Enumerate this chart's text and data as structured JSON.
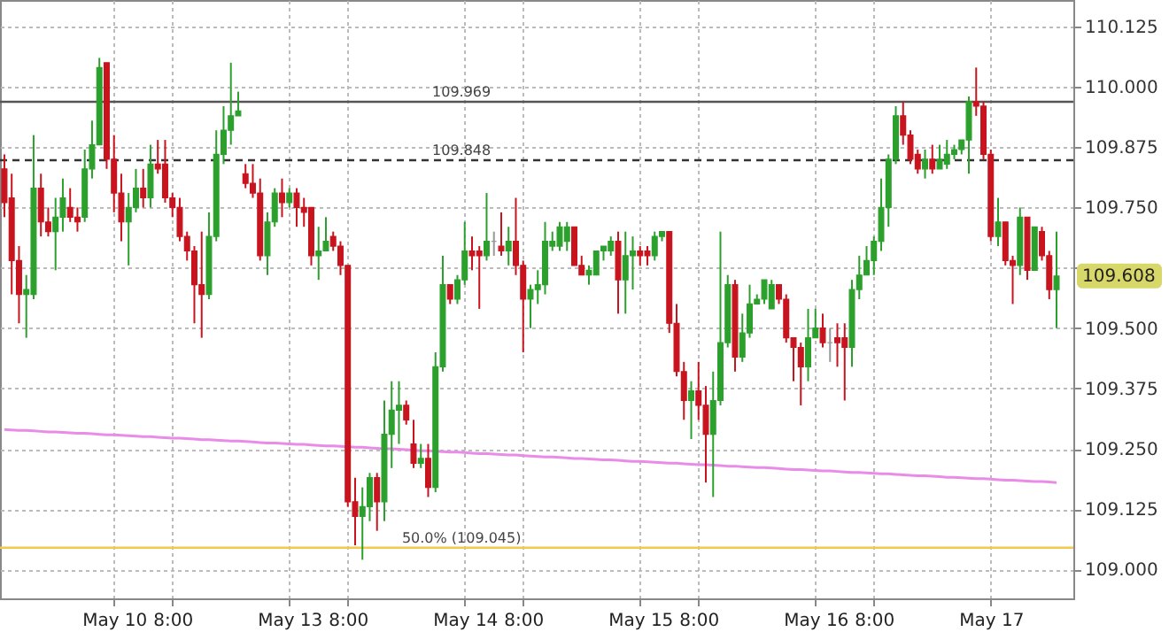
{
  "chart_data": {
    "type": "candlestick",
    "categories": [
      null,
      null,
      null,
      null,
      null,
      null,
      null,
      null,
      null,
      null,
      null,
      null,
      null,
      null,
      null,
      "May 10",
      null,
      null,
      null,
      null,
      null,
      null,
      null,
      "8:00",
      null,
      null,
      null,
      null,
      null,
      null,
      null,
      null,
      null,
      null,
      null,
      null,
      null,
      null,
      null,
      "May 13",
      null,
      null,
      null,
      null,
      null,
      null,
      null,
      "8:00",
      null,
      null,
      null,
      null,
      null,
      null,
      null,
      null,
      null,
      null,
      null,
      null,
      null,
      null,
      null,
      "May 14",
      null,
      null,
      null,
      null,
      null,
      null,
      null,
      "8:00",
      null,
      null,
      null,
      null,
      null,
      null,
      null,
      null,
      null,
      null,
      null,
      null,
      null,
      null,
      null,
      "May 15",
      null,
      null,
      null,
      null,
      null,
      null,
      null,
      "8:00",
      null,
      null,
      null,
      null,
      null,
      null,
      null,
      null,
      null,
      null,
      null,
      null,
      null,
      null,
      null,
      "May 16",
      null,
      null,
      null,
      null,
      null,
      null,
      null,
      "8:00",
      null,
      null,
      null,
      null,
      null,
      null,
      null,
      null,
      null,
      null,
      null,
      null,
      null,
      null,
      null,
      "May 17",
      null,
      null,
      null,
      null,
      null,
      null,
      null,
      null,
      null
    ],
    "ohlc": [
      [
        109.83,
        109.86,
        109.73,
        109.76
      ],
      [
        109.77,
        109.82,
        109.57,
        109.64
      ],
      [
        109.64,
        109.67,
        109.51,
        109.57
      ],
      [
        109.57,
        109.61,
        109.48,
        109.58
      ],
      [
        109.57,
        109.9,
        109.56,
        109.79
      ],
      [
        109.79,
        109.82,
        109.69,
        109.72
      ],
      [
        109.72,
        109.75,
        109.69,
        109.7
      ],
      [
        109.7,
        109.77,
        109.62,
        109.73
      ],
      [
        109.73,
        109.81,
        109.7,
        109.77
      ],
      [
        109.75,
        109.79,
        109.72,
        109.73
      ],
      [
        109.73,
        109.75,
        109.7,
        109.72
      ],
      [
        109.73,
        109.87,
        109.72,
        109.83
      ],
      [
        109.83,
        109.93,
        109.81,
        109.88
      ],
      [
        109.88,
        110.06,
        109.88,
        110.04
      ],
      [
        110.05,
        110.05,
        109.83,
        109.85
      ],
      [
        109.85,
        109.9,
        109.74,
        109.78
      ],
      [
        109.78,
        109.82,
        109.68,
        109.72
      ],
      [
        109.72,
        109.78,
        109.63,
        109.75
      ],
      [
        109.75,
        109.83,
        109.74,
        109.79
      ],
      [
        109.79,
        109.83,
        109.75,
        109.77
      ],
      [
        109.77,
        109.88,
        109.75,
        109.84
      ],
      [
        109.84,
        109.89,
        109.82,
        109.83
      ],
      [
        109.84,
        109.89,
        109.76,
        109.77
      ],
      [
        109.77,
        109.78,
        109.73,
        109.75
      ],
      [
        109.75,
        109.77,
        109.68,
        109.69
      ],
      [
        109.69,
        109.7,
        109.64,
        109.66
      ],
      [
        109.66,
        109.67,
        109.51,
        109.59
      ],
      [
        109.59,
        109.7,
        109.48,
        109.57
      ],
      [
        109.57,
        109.74,
        109.56,
        109.69
      ],
      [
        109.69,
        109.91,
        109.68,
        109.86
      ],
      [
        109.86,
        109.96,
        109.84,
        109.91
      ],
      [
        109.91,
        110.05,
        109.88,
        109.94
      ],
      [
        109.94,
        109.99,
        109.94,
        109.95
      ],
      [
        109.82,
        109.84,
        109.79,
        109.8
      ],
      [
        109.8,
        109.84,
        109.77,
        109.78
      ],
      [
        109.78,
        109.81,
        109.64,
        109.65
      ],
      [
        109.65,
        109.74,
        109.61,
        109.72
      ],
      [
        109.72,
        109.79,
        109.71,
        109.78
      ],
      [
        109.78,
        109.81,
        109.73,
        109.76
      ],
      [
        109.76,
        109.79,
        109.75,
        109.78
      ],
      [
        109.78,
        109.79,
        109.71,
        109.75
      ],
      [
        109.75,
        109.77,
        109.71,
        109.74
      ],
      [
        109.75,
        109.75,
        109.63,
        109.65
      ],
      [
        109.65,
        109.71,
        109.6,
        109.66
      ],
      [
        109.66,
        109.73,
        109.66,
        109.68
      ],
      [
        109.69,
        109.7,
        109.66,
        109.67
      ],
      [
        109.67,
        109.68,
        109.61,
        109.63
      ],
      [
        109.63,
        109.63,
        109.13,
        109.14
      ],
      [
        109.14,
        109.19,
        109.05,
        109.11
      ],
      [
        109.11,
        109.17,
        109.02,
        109.13
      ],
      [
        109.13,
        109.2,
        109.1,
        109.19
      ],
      [
        109.19,
        109.2,
        109.08,
        109.14
      ],
      [
        109.14,
        109.35,
        109.1,
        109.28
      ],
      [
        109.28,
        109.39,
        109.21,
        109.33
      ],
      [
        109.33,
        109.39,
        109.26,
        109.34
      ],
      [
        109.34,
        109.35,
        109.3,
        109.31
      ],
      [
        109.26,
        109.31,
        109.21,
        109.22
      ],
      [
        109.22,
        109.26,
        109.21,
        109.23
      ],
      [
        109.23,
        109.26,
        109.15,
        109.17
      ],
      [
        109.17,
        109.45,
        109.16,
        109.42
      ],
      [
        109.42,
        109.65,
        109.41,
        109.59
      ],
      [
        109.59,
        109.59,
        109.55,
        109.56
      ],
      [
        109.56,
        109.61,
        109.55,
        109.6
      ],
      [
        109.6,
        109.72,
        109.59,
        109.66
      ],
      [
        109.66,
        109.69,
        109.62,
        109.65
      ],
      [
        109.66,
        109.67,
        109.54,
        109.65
      ],
      [
        109.65,
        109.78,
        109.64,
        109.68
      ],
      [
        109.68,
        109.7,
        109.65,
        109.68
      ],
      [
        109.67,
        109.74,
        109.65,
        109.66
      ],
      [
        109.66,
        109.71,
        109.63,
        109.68
      ],
      [
        109.68,
        109.77,
        109.61,
        109.63
      ],
      [
        109.63,
        109.64,
        109.45,
        109.56
      ],
      [
        109.56,
        109.59,
        109.5,
        109.58
      ],
      [
        109.58,
        109.62,
        109.55,
        109.59
      ],
      [
        109.59,
        109.72,
        109.57,
        109.68
      ],
      [
        109.67,
        109.7,
        109.66,
        109.68
      ],
      [
        109.67,
        109.72,
        109.66,
        109.71
      ],
      [
        109.68,
        109.72,
        109.66,
        109.71
      ],
      [
        109.71,
        109.71,
        109.63,
        109.63
      ],
      [
        109.63,
        109.65,
        109.61,
        109.61
      ],
      [
        109.61,
        109.63,
        109.59,
        109.62
      ],
      [
        109.61,
        109.66,
        109.61,
        109.66
      ],
      [
        109.66,
        109.67,
        109.64,
        109.67
      ],
      [
        109.66,
        109.69,
        109.65,
        109.68
      ],
      [
        109.68,
        109.7,
        109.53,
        109.6
      ],
      [
        109.6,
        109.7,
        109.53,
        109.65
      ],
      [
        109.65,
        109.69,
        109.58,
        109.66
      ],
      [
        109.66,
        109.67,
        109.63,
        109.65
      ],
      [
        109.66,
        109.67,
        109.63,
        109.65
      ],
      [
        109.65,
        109.7,
        109.64,
        109.69
      ],
      [
        109.69,
        109.7,
        109.68,
        109.7
      ],
      [
        109.7,
        109.7,
        109.49,
        109.51
      ],
      [
        109.51,
        109.55,
        109.4,
        109.41
      ],
      [
        109.41,
        109.43,
        109.31,
        109.35
      ],
      [
        109.35,
        109.39,
        109.27,
        109.37
      ],
      [
        109.37,
        109.43,
        109.31,
        109.34
      ],
      [
        109.34,
        109.38,
        109.18,
        109.28
      ],
      [
        109.28,
        109.41,
        109.15,
        109.35
      ],
      [
        109.35,
        109.7,
        109.34,
        109.47
      ],
      [
        109.47,
        109.61,
        109.46,
        109.59
      ],
      [
        109.59,
        109.6,
        109.41,
        109.44
      ],
      [
        109.44,
        109.53,
        109.43,
        109.49
      ],
      [
        109.49,
        109.59,
        109.48,
        109.55
      ],
      [
        109.55,
        109.57,
        109.55,
        109.56
      ],
      [
        109.56,
        109.6,
        109.55,
        109.6
      ],
      [
        109.54,
        109.6,
        109.54,
        109.59
      ],
      [
        109.59,
        109.59,
        109.55,
        109.56
      ],
      [
        109.56,
        109.57,
        109.47,
        109.48
      ],
      [
        109.48,
        109.48,
        109.39,
        109.46
      ],
      [
        109.46,
        109.47,
        109.34,
        109.42
      ],
      [
        109.42,
        109.54,
        109.39,
        109.48
      ],
      [
        109.48,
        109.54,
        109.48,
        109.5
      ],
      [
        109.5,
        109.53,
        109.46,
        109.47
      ],
      [
        109.47,
        109.5,
        109.43,
        109.47
      ],
      [
        109.48,
        109.51,
        109.42,
        109.47
      ],
      [
        109.48,
        109.51,
        109.35,
        109.46
      ],
      [
        109.46,
        109.6,
        109.42,
        109.58
      ],
      [
        109.58,
        109.65,
        109.56,
        109.61
      ],
      [
        109.61,
        109.67,
        109.61,
        109.64
      ],
      [
        109.64,
        109.69,
        109.61,
        109.68
      ],
      [
        109.68,
        109.81,
        109.66,
        109.75
      ],
      [
        109.75,
        109.86,
        109.71,
        109.85
      ],
      [
        109.85,
        109.96,
        109.84,
        109.94
      ],
      [
        109.94,
        109.97,
        109.88,
        109.9
      ],
      [
        109.9,
        109.91,
        109.84,
        109.85
      ],
      [
        109.86,
        109.87,
        109.82,
        109.83
      ],
      [
        109.83,
        109.87,
        109.81,
        109.85
      ],
      [
        109.85,
        109.88,
        109.82,
        109.83
      ],
      [
        109.83,
        109.88,
        109.83,
        109.85
      ],
      [
        109.84,
        109.89,
        109.83,
        109.86
      ],
      [
        109.86,
        109.88,
        109.85,
        109.87
      ],
      [
        109.87,
        109.89,
        109.86,
        109.89
      ],
      [
        109.89,
        109.98,
        109.82,
        109.97
      ],
      [
        109.97,
        110.04,
        109.94,
        109.96
      ],
      [
        109.96,
        109.97,
        109.85,
        109.86
      ],
      [
        109.86,
        109.87,
        109.68,
        109.69
      ],
      [
        109.69,
        109.77,
        109.67,
        109.72
      ],
      [
        109.72,
        109.72,
        109.63,
        109.64
      ],
      [
        109.64,
        109.65,
        109.55,
        109.63
      ],
      [
        109.63,
        109.75,
        109.61,
        109.73
      ],
      [
        109.73,
        109.73,
        109.6,
        109.62
      ],
      [
        109.62,
        109.71,
        109.62,
        109.71
      ],
      [
        109.7,
        109.71,
        109.64,
        109.65
      ],
      [
        109.65,
        109.66,
        109.56,
        109.58
      ],
      [
        109.58,
        109.7,
        109.5,
        109.608
      ]
    ],
    "colors": [
      "#c8141e",
      "#c8141e",
      "#c8141e",
      "#2ca02c",
      "#2ca02c",
      "#c8141e",
      "#c8141e",
      "#2ca02c",
      "#2ca02c",
      "#c8141e",
      "#c8141e",
      "#2ca02c",
      "#2ca02c",
      "#2ca02c",
      "#c8141e",
      "#c8141e",
      "#c8141e",
      "#2ca02c",
      "#2ca02c",
      "#c8141e",
      "#2ca02c",
      "#c8141e",
      "#c8141e",
      "#c8141e",
      "#c8141e",
      "#c8141e",
      "#c8141e",
      "#c8141e",
      "#2ca02c",
      "#2ca02c",
      "#2ca02c",
      "#2ca02c",
      "#2ca02c",
      "#c8141e",
      "#c8141e",
      "#c8141e",
      "#2ca02c",
      "#2ca02c",
      "#c8141e",
      "#2ca02c",
      "#c8141e",
      "#c8141e",
      "#c8141e",
      "#2ca02c",
      "#2ca02c",
      "#c8141e",
      "#c8141e",
      "#c8141e",
      "#c8141e",
      "#2ca02c",
      "#2ca02c",
      "#c8141e",
      "#2ca02c",
      "#2ca02c",
      "#2ca02c",
      "#c8141e",
      "#c8141e",
      "#2ca02c",
      "#c8141e",
      "#2ca02c",
      "#2ca02c",
      "#c8141e",
      "#2ca02c",
      "#2ca02c",
      "#c8141e",
      "#c8141e",
      "#2ca02c",
      "#999999",
      "#c8141e",
      "#2ca02c",
      "#c8141e",
      "#c8141e",
      "#2ca02c",
      "#2ca02c",
      "#2ca02c",
      "#2ca02c",
      "#2ca02c",
      "#2ca02c",
      "#c8141e",
      "#c8141e",
      "#2ca02c",
      "#2ca02c",
      "#2ca02c",
      "#2ca02c",
      "#c8141e",
      "#2ca02c",
      "#2ca02c",
      "#c8141e",
      "#c8141e",
      "#2ca02c",
      "#2ca02c",
      "#c8141e",
      "#c8141e",
      "#c8141e",
      "#2ca02c",
      "#c8141e",
      "#c8141e",
      "#2ca02c",
      "#2ca02c",
      "#2ca02c",
      "#c8141e",
      "#2ca02c",
      "#2ca02c",
      "#2ca02c",
      "#2ca02c",
      "#2ca02c",
      "#c8141e",
      "#c8141e",
      "#c8141e",
      "#c8141e",
      "#2ca02c",
      "#2ca02c",
      "#c8141e",
      "#999999",
      "#c8141e",
      "#c8141e",
      "#2ca02c",
      "#2ca02c",
      "#2ca02c",
      "#2ca02c",
      "#2ca02c",
      "#2ca02c",
      "#2ca02c",
      "#c8141e",
      "#c8141e",
      "#c8141e",
      "#2ca02c",
      "#c8141e",
      "#2ca02c",
      "#2ca02c",
      "#2ca02c",
      "#2ca02c",
      "#2ca02c",
      "#c8141e",
      "#c8141e",
      "#c8141e",
      "#2ca02c",
      "#c8141e",
      "#c8141e",
      "#2ca02c",
      "#c8141e",
      "#2ca02c",
      "#c8141e",
      "#c8141e",
      "#2ca02c"
    ],
    "series": [
      {
        "type": "line",
        "color": "#e88ce8",
        "values": [
          109.29,
          109.289,
          109.288,
          109.288,
          109.287,
          109.286,
          109.285,
          109.285,
          109.284,
          109.283,
          109.282,
          109.282,
          109.281,
          109.28,
          109.279,
          109.279,
          109.278,
          109.277,
          109.276,
          109.275,
          109.275,
          109.274,
          109.273,
          109.272,
          109.272,
          109.271,
          109.27,
          109.269,
          109.269,
          109.268,
          109.267,
          109.266,
          109.266,
          109.265,
          109.264,
          109.263,
          109.262,
          109.262,
          109.261,
          109.26,
          109.259,
          109.259,
          109.258,
          109.257,
          109.256,
          109.256,
          109.255,
          109.254,
          109.253,
          109.253,
          109.252,
          109.251,
          109.25,
          109.25,
          109.249,
          109.248,
          109.247,
          109.246,
          109.246,
          109.245,
          109.244,
          109.243,
          109.243,
          109.242,
          109.241,
          109.24,
          109.24,
          109.239,
          109.238,
          109.237,
          109.237,
          109.236,
          109.235,
          109.234,
          109.233,
          109.233,
          109.232,
          109.231,
          109.23,
          109.23,
          109.229,
          109.228,
          109.227,
          109.227,
          109.226,
          109.225,
          109.224,
          109.224,
          109.223,
          109.222,
          109.221,
          109.22,
          109.22,
          109.219,
          109.218,
          109.217,
          109.217,
          109.216,
          109.215,
          109.214,
          109.214,
          109.213,
          109.212,
          109.211,
          109.211,
          109.21,
          109.209,
          109.208,
          109.207,
          109.207,
          109.206,
          109.205,
          109.204,
          109.204,
          109.203,
          109.202,
          109.201,
          109.201,
          109.2,
          109.199,
          109.198,
          109.198,
          109.197,
          109.196,
          109.195,
          109.194,
          109.194,
          109.193,
          109.192,
          109.191,
          109.191,
          109.19,
          109.189,
          109.188,
          109.188,
          109.187,
          109.186,
          109.185,
          109.185,
          109.184,
          109.183,
          109.182,
          109.182,
          109.181,
          109.18
        ]
      }
    ],
    "ylim": [
      108.94,
      110.18
    ],
    "yticks": [
      {
        "value": 109,
        "label": "109.000"
      },
      {
        "value": 109.125,
        "label": "109.125"
      },
      {
        "value": 109.25,
        "label": "109.250"
      },
      {
        "value": 109.375,
        "label": "109.375"
      },
      {
        "value": 109.5,
        "label": "109.500"
      },
      {
        "value": 109.625,
        "label": null
      },
      {
        "value": 109.75,
        "label": "109.750"
      },
      {
        "value": 109.875,
        "label": "109.875"
      },
      {
        "value": 110,
        "label": "110.000"
      },
      {
        "value": 110.125,
        "label": "110.125"
      }
    ],
    "ref_lines": [
      {
        "axis": "y",
        "value": 109.969,
        "label": "109.969",
        "color": "#555555",
        "line_style": "solid"
      },
      {
        "axis": "y",
        "value": 109.848,
        "label": "109.848",
        "color": "#333333",
        "line_style": "dashed"
      },
      {
        "axis": "y",
        "value": 109.045,
        "label": "50.0% (109.045)",
        "color": "#f2c94c",
        "line_style": "solid"
      }
    ],
    "annotations": [
      "109.608"
    ],
    "grid": true
  }
}
